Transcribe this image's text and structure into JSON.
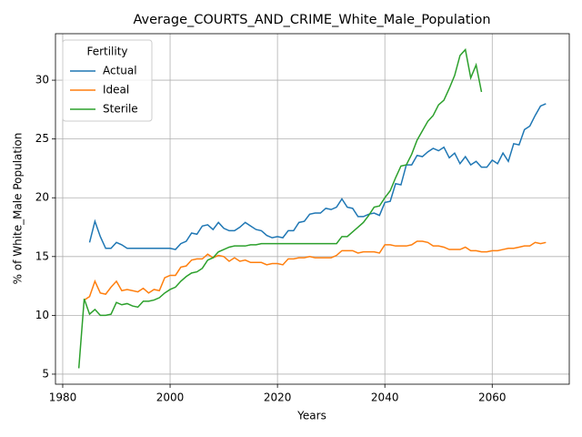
{
  "chart_data": {
    "type": "line",
    "title": "Average_COURTS_AND_CRIME_White_Male_Population",
    "xlabel": "Years",
    "ylabel": "% of White_Male Population",
    "legend_title": "Fertility",
    "legend_loc": "upper left",
    "grid": true,
    "x": [
      1983,
      1984,
      1985,
      1986,
      1987,
      1988,
      1989,
      1990,
      1991,
      1992,
      1993,
      1994,
      1995,
      1996,
      1997,
      1998,
      1999,
      2000,
      2001,
      2002,
      2003,
      2004,
      2005,
      2006,
      2007,
      2008,
      2009,
      2010,
      2011,
      2012,
      2013,
      2014,
      2015,
      2016,
      2017,
      2018,
      2019,
      2020,
      2021,
      2022,
      2023,
      2024,
      2025,
      2026,
      2027,
      2028,
      2029,
      2030,
      2031,
      2032,
      2033,
      2034,
      2035,
      2036,
      2037,
      2038,
      2039,
      2040,
      2041,
      2042,
      2043,
      2044,
      2045,
      2046,
      2047,
      2048,
      2049,
      2050,
      2051,
      2052,
      2053,
      2054,
      2055,
      2056,
      2057,
      2058,
      2059,
      2060,
      2061,
      2062,
      2063,
      2064,
      2065,
      2066,
      2067,
      2068,
      2069,
      2070
    ],
    "series": [
      {
        "name": "Actual",
        "color": "#1f77b4",
        "values": [
          null,
          null,
          16.2,
          18.0,
          16.7,
          15.7,
          15.7,
          16.2,
          16.0,
          15.7,
          15.7,
          15.7,
          15.7,
          15.7,
          15.7,
          15.7,
          15.7,
          15.7,
          15.6,
          16.1,
          16.3,
          17.0,
          16.9,
          17.6,
          17.7,
          17.3,
          17.9,
          17.4,
          17.2,
          17.2,
          17.5,
          17.9,
          17.6,
          17.3,
          17.2,
          16.8,
          16.6,
          16.7,
          16.6,
          17.2,
          17.2,
          17.9,
          18.0,
          18.6,
          18.7,
          18.7,
          19.1,
          19.0,
          19.2,
          19.9,
          19.2,
          19.1,
          18.4,
          18.4,
          18.6,
          18.7,
          18.5,
          19.6,
          19.7,
          21.2,
          21.1,
          22.8,
          22.8,
          23.6,
          23.5,
          23.9,
          24.2,
          24.0,
          24.3,
          23.4,
          23.8,
          22.9,
          23.5,
          22.8,
          23.1,
          22.6,
          22.6,
          23.2,
          22.9,
          23.8,
          23.1,
          24.6,
          24.5,
          25.8,
          26.1,
          27.0,
          27.8,
          28.0
        ]
      },
      {
        "name": "Ideal",
        "color": "#ff7f0e",
        "values": [
          null,
          11.3,
          11.6,
          12.9,
          11.9,
          11.8,
          12.4,
          12.9,
          12.1,
          12.2,
          12.1,
          12.0,
          12.3,
          11.9,
          12.2,
          12.1,
          13.2,
          13.4,
          13.4,
          14.1,
          14.2,
          14.7,
          14.8,
          14.8,
          15.2,
          14.9,
          15.1,
          15.0,
          14.6,
          14.9,
          14.6,
          14.7,
          14.5,
          14.5,
          14.5,
          14.3,
          14.4,
          14.4,
          14.3,
          14.8,
          14.8,
          14.9,
          14.9,
          15.0,
          14.9,
          14.9,
          14.9,
          14.9,
          15.1,
          15.5,
          15.5,
          15.5,
          15.3,
          15.4,
          15.4,
          15.4,
          15.3,
          16.0,
          16.0,
          15.9,
          15.9,
          15.9,
          16.0,
          16.3,
          16.3,
          16.2,
          15.9,
          15.9,
          15.8,
          15.6,
          15.6,
          15.6,
          15.8,
          15.5,
          15.5,
          15.4,
          15.4,
          15.5,
          15.5,
          15.6,
          15.7,
          15.7,
          15.8,
          15.9,
          15.9,
          16.2,
          16.1,
          16.2
        ]
      },
      {
        "name": "Sterile",
        "color": "#2ca02c",
        "values": [
          5.5,
          11.4,
          10.1,
          10.5,
          10.0,
          10.0,
          10.1,
          11.1,
          10.9,
          11.0,
          10.8,
          10.7,
          11.2,
          11.2,
          11.3,
          11.5,
          11.9,
          12.2,
          12.4,
          12.9,
          13.3,
          13.6,
          13.7,
          14.0,
          14.7,
          14.9,
          15.4,
          15.6,
          15.8,
          15.9,
          15.9,
          15.9,
          16.0,
          16.0,
          16.1,
          16.1,
          16.1,
          16.1,
          16.1,
          16.1,
          16.1,
          16.1,
          16.1,
          16.1,
          16.1,
          16.1,
          16.1,
          16.1,
          16.1,
          16.7,
          16.7,
          17.1,
          17.5,
          17.9,
          18.5,
          19.2,
          19.3,
          20.0,
          20.6,
          21.7,
          22.7,
          22.8,
          23.7,
          24.9,
          25.7,
          26.5,
          27.0,
          27.9,
          28.3,
          29.3,
          30.4,
          32.1,
          32.6,
          30.2,
          31.3,
          29.0,
          null,
          null,
          null,
          null,
          null,
          null,
          null,
          null,
          null,
          null,
          null,
          null
        ]
      }
    ],
    "xlim": [
      1978.65,
      2074.35
    ],
    "ylim": [
      4.145,
      33.955
    ],
    "xticks": [
      1980,
      2000,
      2020,
      2040,
      2060
    ],
    "yticks": [
      5,
      10,
      15,
      20,
      25,
      30
    ]
  }
}
